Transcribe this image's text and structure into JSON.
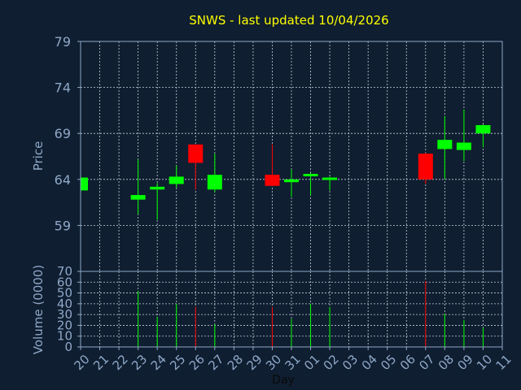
{
  "chart_data": {
    "type": "candlestick",
    "title": "SNWS - last updated 10/04/2026",
    "price_axis": {
      "label": "Price",
      "ylim": [
        54,
        79
      ],
      "ticks": [
        "79",
        "74",
        "69",
        "64",
        "59"
      ],
      "tick_values": [
        79,
        74,
        69,
        64,
        59
      ]
    },
    "volume_axis": {
      "label": "Volume (0000)",
      "ylim": [
        0,
        70
      ],
      "ticks": [
        "70",
        "60",
        "50",
        "40",
        "30",
        "20",
        "10",
        "0"
      ],
      "tick_values": [
        70,
        60,
        50,
        40,
        30,
        20,
        10,
        0
      ]
    },
    "xlabel": "Day",
    "x_ticks": [
      "20",
      "21",
      "22",
      "23",
      "24",
      "25",
      "26",
      "27",
      "28",
      "29",
      "30",
      "31",
      "01",
      "02",
      "03",
      "04",
      "05",
      "06",
      "07",
      "08",
      "09",
      "10",
      "11"
    ],
    "grid": true,
    "colors": {
      "background": "#0f1e30",
      "axis": "#8fa8c8",
      "grid": "#c8d0dc",
      "title": "#ffff00",
      "up": "#00ff00",
      "down": "#ff0000"
    },
    "candles": [
      {
        "day": "20",
        "open": 62.8,
        "close": 64.2,
        "high": 64.2,
        "low": 62.8,
        "volume": 0
      },
      {
        "day": "23",
        "open": 61.8,
        "close": 62.3,
        "high": 66.2,
        "low": 60.2,
        "volume": 52
      },
      {
        "day": "24",
        "open": 62.9,
        "close": 63.2,
        "high": 63.6,
        "low": 59.6,
        "volume": 28
      },
      {
        "day": "25",
        "open": 63.5,
        "close": 64.3,
        "high": 65.5,
        "low": 63.1,
        "volume": 40
      },
      {
        "day": "26",
        "open": 67.8,
        "close": 65.8,
        "high": 67.8,
        "low": 62.9,
        "volume": 37
      },
      {
        "day": "27",
        "open": 62.9,
        "close": 64.5,
        "high": 66.8,
        "low": 62.6,
        "volume": 21
      },
      {
        "day": "30",
        "open": 64.5,
        "close": 63.3,
        "high": 67.8,
        "low": 63.3,
        "volume": 37
      },
      {
        "day": "31",
        "open": 63.7,
        "close": 64.0,
        "high": 65.1,
        "low": 62.1,
        "volume": 26
      },
      {
        "day": "01",
        "open": 64.4,
        "close": 64.6,
        "high": 64.7,
        "low": 62.3,
        "volume": 40
      },
      {
        "day": "02",
        "open": 64.0,
        "close": 64.2,
        "high": 64.3,
        "low": 62.8,
        "volume": 37
      },
      {
        "day": "07",
        "open": 66.8,
        "close": 64.0,
        "high": 66.9,
        "low": 63.5,
        "volume": 61
      },
      {
        "day": "08",
        "open": 67.3,
        "close": 68.3,
        "high": 70.9,
        "low": 64.0,
        "volume": 31
      },
      {
        "day": "09",
        "open": 67.2,
        "close": 68.0,
        "high": 71.6,
        "low": 66.0,
        "volume": 25
      },
      {
        "day": "10",
        "open": 69.0,
        "close": 69.9,
        "high": 70.0,
        "low": 67.5,
        "volume": 18
      }
    ]
  }
}
